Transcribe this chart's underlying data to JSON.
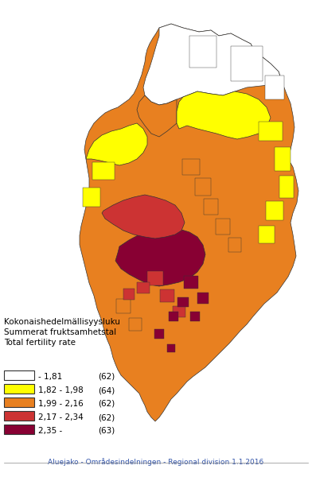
{
  "title_lines": [
    "Kokonaishedelmällisyysluku",
    "Summerat fruktsamhetstal",
    "Total fertility rate"
  ],
  "legend_items": [
    {
      "label": "- 1,81",
      "count": "(62)",
      "color": "#FFFFFF",
      "edgecolor": "#333333"
    },
    {
      "label": "1,82 - 1,98",
      "count": "(64)",
      "color": "#FFFF00",
      "edgecolor": "#333333"
    },
    {
      "label": "1,99 - 2,16",
      "count": "(62)",
      "color": "#E88020",
      "edgecolor": "#333333"
    },
    {
      "label": "2,17 - 2,34",
      "count": "(62)",
      "color": "#CC3333",
      "edgecolor": "#333333"
    },
    {
      "label": "2,35 -",
      "count": "(63)",
      "color": "#880033",
      "edgecolor": "#333333"
    }
  ],
  "footer_text": "Aluejako - Områdesindelningen - Regional division 1.1.2016",
  "footer_color": "#3355AA",
  "background_color": "#FFFFFF",
  "map_border_color": "#333333",
  "figsize": [
    3.92,
    6.0
  ],
  "dpi": 100
}
